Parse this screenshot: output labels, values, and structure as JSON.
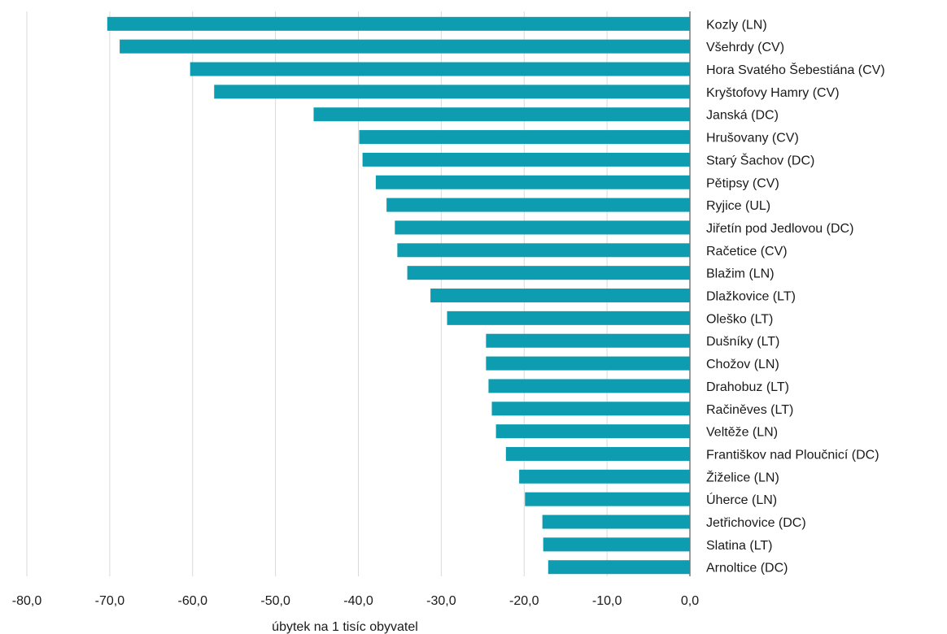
{
  "chart_data": {
    "type": "bar",
    "orientation": "horizontal",
    "title": "",
    "xlabel": "úbytek na 1 tisíc obyvatel",
    "ylabel": "",
    "xlim": [
      -80,
      0
    ],
    "x_ticks": [
      -80,
      -70,
      -60,
      -50,
      -40,
      -30,
      -20,
      -10,
      0
    ],
    "x_tick_labels": [
      "-80,0",
      "-70,0",
      "-60,0",
      "-50,0",
      "-40,0",
      "-30,0",
      "-20,0",
      "-10,0",
      "0,0"
    ],
    "grid": true,
    "legend": "none",
    "bar_color": "#0e9cb0",
    "categories": [
      "Kozly (LN)",
      "Všehrdy (CV)",
      "Hora Svatého Šebestiána (CV)",
      "Kryštofovy Hamry (CV)",
      "Janská (DC)",
      "Hrušovany (CV)",
      "Starý Šachov (DC)",
      "Pětipsy (CV)",
      "Ryjice (UL)",
      "Jiřetín pod Jedlovou (DC)",
      "Račetice (CV)",
      "Blažim (LN)",
      "Dlažkovice (LT)",
      "Oleško (LT)",
      "Dušníky (LT)",
      "Chožov (LN)",
      "Drahobuz (LT)",
      "Račiněves (LT)",
      "Veltěže (LN)",
      "Františkov nad Ploučnicí (DC)",
      "Žiželice (LN)",
      "Úherce (LN)",
      "Jetřichovice (DC)",
      "Slatina (LT)",
      "Arnoltice (DC)"
    ],
    "values": [
      -70.3,
      -68.8,
      -60.3,
      -57.4,
      -45.4,
      -39.9,
      -39.5,
      -37.9,
      -36.6,
      -35.6,
      -35.3,
      -34.1,
      -31.3,
      -29.3,
      -24.6,
      -24.6,
      -24.3,
      -23.9,
      -23.4,
      -22.2,
      -20.6,
      -19.9,
      -17.8,
      -17.7,
      -17.1
    ]
  }
}
